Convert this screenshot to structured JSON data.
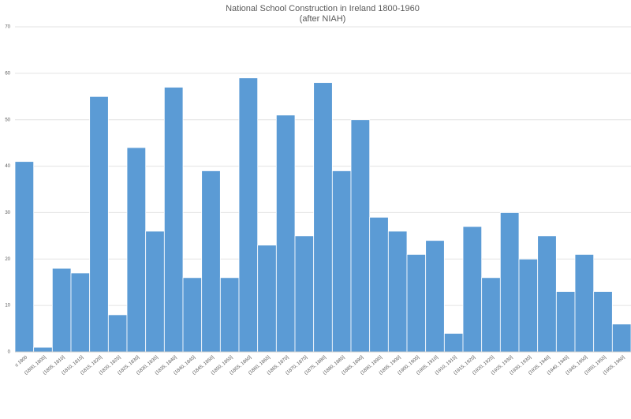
{
  "chart_data": {
    "type": "bar",
    "title": "National School Construction in Ireland 1800-1960",
    "subtitle": "(after NIAH)",
    "categories": [
      "≤ 1800",
      "(1800, 1805]",
      "(1805, 1810]",
      "(1810, 1815]",
      "(1815, 1820]",
      "(1820, 1825]",
      "(1825, 1830]",
      "(1830, 1835]",
      "(1835, 1840]",
      "(1840, 1845]",
      "(1845, 1850]",
      "(1850, 1855]",
      "(1855, 1860]",
      "(1860, 1865]",
      "(1865, 1870]",
      "(1870, 1875]",
      "(1875, 1880]",
      "(1880, 1885]",
      "(1885, 1890]",
      "(1890, 1895]",
      "(1895, 1900]",
      "(1900, 1905]",
      "(1905, 1910]",
      "(1910, 1915]",
      "(1915, 1920]",
      "(1920, 1925]",
      "(1925, 1930]",
      "(1930, 1935]",
      "(1935, 1940]",
      "(1940, 1945]",
      "(1945, 1950]",
      "(1950, 1955]",
      "(1955, 1960]"
    ],
    "values": [
      41,
      1,
      18,
      17,
      55,
      8,
      44,
      26,
      57,
      16,
      39,
      16,
      59,
      23,
      51,
      25,
      58,
      39,
      50,
      29,
      26,
      21,
      24,
      4,
      27,
      16,
      30,
      20,
      25,
      13,
      21,
      13,
      6
    ],
    "color": "#5b9bd5",
    "ylim": [
      0,
      70
    ],
    "yticks": [
      0,
      10,
      20,
      30,
      40,
      50,
      60,
      70
    ],
    "grid": true
  }
}
